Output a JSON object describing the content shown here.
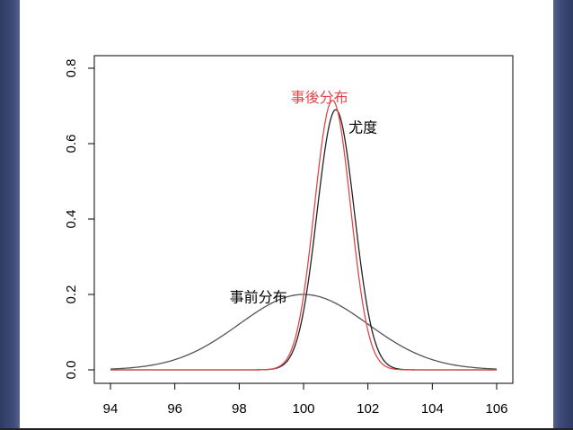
{
  "colors": {
    "posterior": "#e04848",
    "likelihood": "#222222",
    "prior": "#555555",
    "background": "#ffffff"
  },
  "chart_data": {
    "type": "line",
    "title": "",
    "xlabel": "",
    "ylabel": "",
    "xlim": [
      94,
      106
    ],
    "ylim": [
      0,
      0.8
    ],
    "x_ticks": [
      "94",
      "96",
      "98",
      "100",
      "102",
      "104",
      "106"
    ],
    "y_ticks": [
      "0.0",
      "0.2",
      "0.4",
      "0.6",
      "0.8"
    ],
    "grid": false,
    "series": [
      {
        "name": "事前分布",
        "color": "#555555",
        "mean": 100.0,
        "sd": 2.0,
        "peak": 0.2
      },
      {
        "name": "尤度",
        "color": "#222222",
        "mean": 101.0,
        "sd": 0.58,
        "peak": 0.69
      },
      {
        "name": "事後分布",
        "color": "#e04848",
        "mean": 100.9,
        "sd": 0.56,
        "peak": 0.715
      }
    ],
    "annotations": [
      {
        "text": "事後分布",
        "x": 99.6,
        "y": 0.71,
        "color": "#e04848"
      },
      {
        "text": "尤度",
        "x": 101.4,
        "y": 0.63,
        "color": "#000000"
      },
      {
        "text": "事前分布",
        "x": 97.7,
        "y": 0.18,
        "color": "#000000"
      }
    ]
  }
}
